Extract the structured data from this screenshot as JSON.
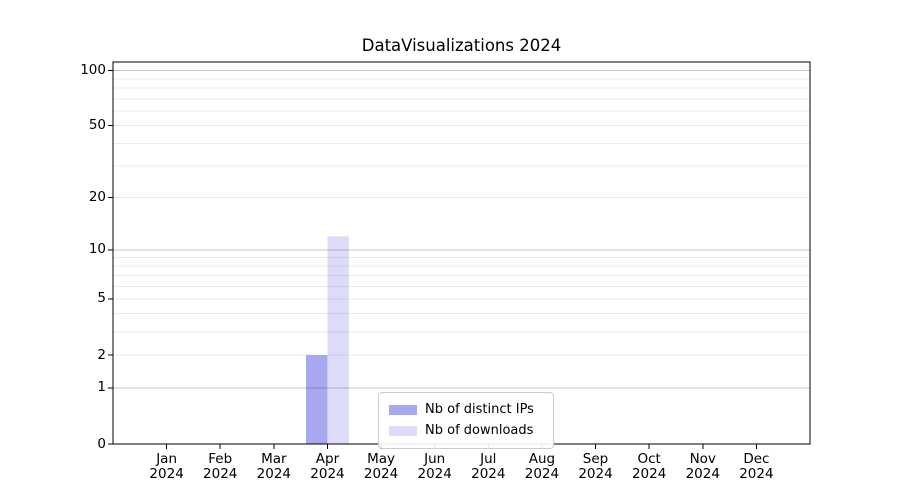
{
  "chart_data": {
    "type": "bar",
    "title": "DataVisualizations 2024",
    "categories": [
      "Jan",
      "Feb",
      "Mar",
      "Apr",
      "May",
      "Jun",
      "Jul",
      "Aug",
      "Sep",
      "Oct",
      "Nov",
      "Dec"
    ],
    "category_year": "2024",
    "series": [
      {
        "name": "Nb of distinct IPs",
        "color": "#a8a8f0",
        "values": [
          0,
          0,
          0,
          2,
          0,
          0,
          0,
          0,
          0,
          0,
          0,
          0
        ]
      },
      {
        "name": "Nb of downloads",
        "color": "#dcdcf8",
        "values": [
          0,
          0,
          0,
          12,
          0,
          0,
          0,
          0,
          0,
          0,
          0,
          0
        ]
      }
    ],
    "xlabel": "",
    "ylabel": "",
    "y_axis": {
      "scale": "log10(value+1)",
      "ticks": [
        0,
        1,
        2,
        5,
        10,
        20,
        50,
        100
      ],
      "major_gridlines": [
        1,
        10,
        100
      ],
      "minor_gridlines": [
        2,
        3,
        4,
        5,
        6,
        7,
        8,
        9,
        20,
        30,
        40,
        50,
        60,
        70,
        80,
        90
      ],
      "ylim": [
        0,
        111
      ]
    },
    "legend": {
      "position": "lower center",
      "entries": [
        "Nb of distinct IPs",
        "Nb of downloads"
      ]
    },
    "grid": true
  },
  "colors": {
    "background": "#ffffff",
    "spine": "#000000",
    "major_grid": "rgba(0,0,0,0.22)",
    "minor_grid": "rgba(0,0,0,0.08)",
    "legend_border": "#cccccc",
    "text": "#000000"
  }
}
